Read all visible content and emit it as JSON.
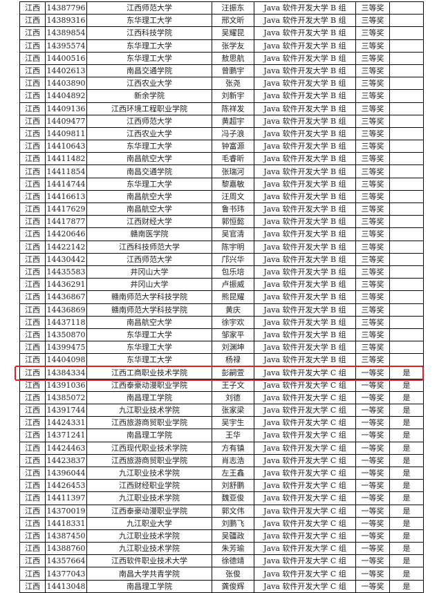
{
  "highlight_color": "#e02020",
  "highlighted_row_index": 29,
  "rows": [
    [
      "江西",
      "14387796",
      "江西师范大学",
      "汪振东",
      "Java 软件开发大学 B 组",
      "三等奖",
      ""
    ],
    [
      "江西",
      "14389316",
      "东华理工大学",
      "邢文昕",
      "Java 软件开发大学 B 组",
      "三等奖",
      ""
    ],
    [
      "江西",
      "14389854",
      "江西科技学院",
      "吴耀昆",
      "Java 软件开发大学 B 组",
      "三等奖",
      ""
    ],
    [
      "江西",
      "14395574",
      "东华理工大学",
      "张学友",
      "Java 软件开发大学 B 组",
      "三等奖",
      ""
    ],
    [
      "江西",
      "14400516",
      "东华理工大学",
      "敖思航",
      "Java 软件开发大学 B 组",
      "三等奖",
      ""
    ],
    [
      "江西",
      "14402613",
      "南昌交通学院",
      "曾鹏宇",
      "Java 软件开发大学 B 组",
      "三等奖",
      ""
    ],
    [
      "江西",
      "14403890",
      "江西农业大学",
      "张尧",
      "Java 软件开发大学 B 组",
      "三等奖",
      ""
    ],
    [
      "江西",
      "14404892",
      "新余学院",
      "刘新宇",
      "Java 软件开发大学 B 组",
      "三等奖",
      ""
    ],
    [
      "江西",
      "14409136",
      "江西环境工程职业学院",
      "陈祥发",
      "Java 软件开发大学 B 组",
      "三等奖",
      ""
    ],
    [
      "江西",
      "14409477",
      "江西师范大学",
      "黄超宇",
      "Java 软件开发大学 B 组",
      "三等奖",
      ""
    ],
    [
      "江西",
      "14409811",
      "江西农业大学",
      "冯子浪",
      "Java 软件开发大学 B 组",
      "三等奖",
      ""
    ],
    [
      "江西",
      "14410643",
      "东华理工大学",
      "钟富源",
      "Java 软件开发大学 B 组",
      "三等奖",
      ""
    ],
    [
      "江西",
      "14411482",
      "南昌航空大学",
      "毛睿昕",
      "Java 软件开发大学 B 组",
      "三等奖",
      ""
    ],
    [
      "江西",
      "14411854",
      "南昌交通学院",
      "张瑞河",
      "Java 软件开发大学 B 组",
      "三等奖",
      ""
    ],
    [
      "江西",
      "14414744",
      "东华理工大学",
      "黎嘉敏",
      "Java 软件开发大学 B 组",
      "三等奖",
      ""
    ],
    [
      "江西",
      "14416613",
      "南昌航空大学",
      "汪周文",
      "Java 软件开发大学 B 组",
      "三等奖",
      ""
    ],
    [
      "江西",
      "14417629",
      "南昌航空大学",
      "鲁书玮",
      "Java 软件开发大学 B 组",
      "三等奖",
      ""
    ],
    [
      "江西",
      "14417877",
      "江西财经大学",
      "郭恒懿",
      "Java 软件开发大学 B 组",
      "三等奖",
      ""
    ],
    [
      "江西",
      "14420646",
      "赣南医学院",
      "吴官清",
      "Java 软件开发大学 B 组",
      "三等奖",
      ""
    ],
    [
      "江西",
      "14422142",
      "江西科技师范大学",
      "陈宇明",
      "Java 软件开发大学 B 组",
      "三等奖",
      ""
    ],
    [
      "江西",
      "14430442",
      "江西师范大学",
      "邝兴华",
      "Java 软件开发大学 B 组",
      "三等奖",
      ""
    ],
    [
      "江西",
      "14435583",
      "井冈山大学",
      "包乐培",
      "Java 软件开发大学 B 组",
      "三等奖",
      ""
    ],
    [
      "江西",
      "14436291",
      "井冈山大学",
      "卢振威",
      "Java 软件开发大学 B 组",
      "三等奖",
      ""
    ],
    [
      "江西",
      "14436867",
      "赣南师范大学科技学院",
      "熊昆耀",
      "Java 软件开发大学 B 组",
      "三等奖",
      ""
    ],
    [
      "江西",
      "14436869",
      "赣南师范大学科技学院",
      "黄庆",
      "Java 软件开发大学 B 组",
      "三等奖",
      ""
    ],
    [
      "江西",
      "14437118",
      "南昌航空大学",
      "徐宇欢",
      "Java 软件开发大学 B 组",
      "三等奖",
      ""
    ],
    [
      "江西",
      "14350870",
      "东华理工大学",
      "邹家平",
      "Java 软件开发大学 B 组",
      "三等奖",
      ""
    ],
    [
      "江西",
      "14399475",
      "东华理工大学",
      "刘渊坤",
      "Java 软件开发大学 B 组",
      "三等奖",
      ""
    ],
    [
      "江西",
      "14404098",
      "东华理工大学",
      "杨禄",
      "Java 软件开发大学 B 组",
      "三等奖",
      ""
    ],
    [
      "江西",
      "14384334",
      "江西工商职业技术学院",
      "彭嗣萱",
      "Java 软件开发大学 C 组",
      "一等奖",
      "是"
    ],
    [
      "江西",
      "14391036",
      "江西泰豪动漫职业学院",
      "王子文",
      "Java 软件开发大学 C 组",
      "一等奖",
      "是"
    ],
    [
      "江西",
      "14385072",
      "南昌理工学院",
      "刘德",
      "Java 软件开发大学 C 组",
      "一等奖",
      "是"
    ],
    [
      "江西",
      "14391744",
      "九江职业技术学院",
      "张家梁",
      "Java 软件开发大学 C 组",
      "一等奖",
      "是"
    ],
    [
      "江西",
      "14424331",
      "江西旅游商贸职业学院",
      "吴宇生",
      "Java 软件开发大学 C 组",
      "一等奖",
      "是"
    ],
    [
      "江西",
      "14371241",
      "南昌理工学院",
      "王华",
      "Java 软件开发大学 C 组",
      "一等奖",
      "是"
    ],
    [
      "江西",
      "14424463",
      "江西现代职业技术学院",
      "方有镇",
      "Java 软件开发大学 C 组",
      "一等奖",
      "是"
    ],
    [
      "江西",
      "14423837",
      "江西旅游商贸职业学院",
      "肖志浩",
      "Java 软件开发大学 C 组",
      "一等奖",
      "是"
    ],
    [
      "江西",
      "14396044",
      "九江职业技术学院",
      "左王鑫",
      "Java 软件开发大学 C 组",
      "一等奖",
      "是"
    ],
    [
      "江西",
      "14426453",
      "江西财经职业学院",
      "刘舒鹏",
      "Java 软件开发大学 C 组",
      "一等奖",
      "是"
    ],
    [
      "江西",
      "14411397",
      "九江职业技术学院",
      "魏亚俊",
      "Java 软件开发大学 C 组",
      "一等奖",
      "是"
    ],
    [
      "江西",
      "14370019",
      "江西泰豪动漫职业学院",
      "郭文伟",
      "Java 软件开发大学 C 组",
      "一等奖",
      "是"
    ],
    [
      "江西",
      "14418331",
      "九江职业大学",
      "刘鹏飞",
      "Java 软件开发大学 C 组",
      "一等奖",
      "是"
    ],
    [
      "江西",
      "14387450",
      "九江职业技术学院",
      "吴疆政",
      "Java 软件开发大学 C 组",
      "一等奖",
      "是"
    ],
    [
      "江西",
      "14388760",
      "九江职业技术学院",
      "朱芳瑜",
      "Java 软件开发大学 C 组",
      "一等奖",
      "是"
    ],
    [
      "江西",
      "14357664",
      "江西软件职业技术大学",
      "徐德靖",
      "Java 软件开发大学 C 组",
      "一等奖",
      "是"
    ],
    [
      "江西",
      "14377043",
      "南昌大学共青学院",
      "张俊",
      "Java 软件开发大学 C 组",
      "一等奖",
      "是"
    ],
    [
      "江西",
      "14413048",
      "南昌理工学院",
      "龚俊辉",
      "Java 软件开发大学 C 组",
      "一等奖",
      "是"
    ]
  ]
}
